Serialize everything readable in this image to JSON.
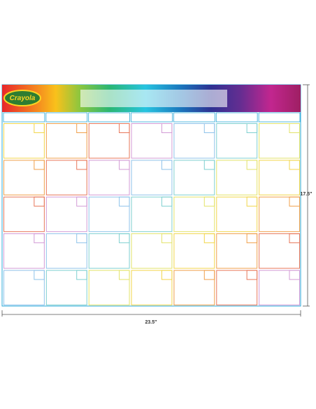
{
  "product": {
    "logo": "Crayola",
    "height_label": "17.5\"",
    "width_label": "23.5\""
  }
}
